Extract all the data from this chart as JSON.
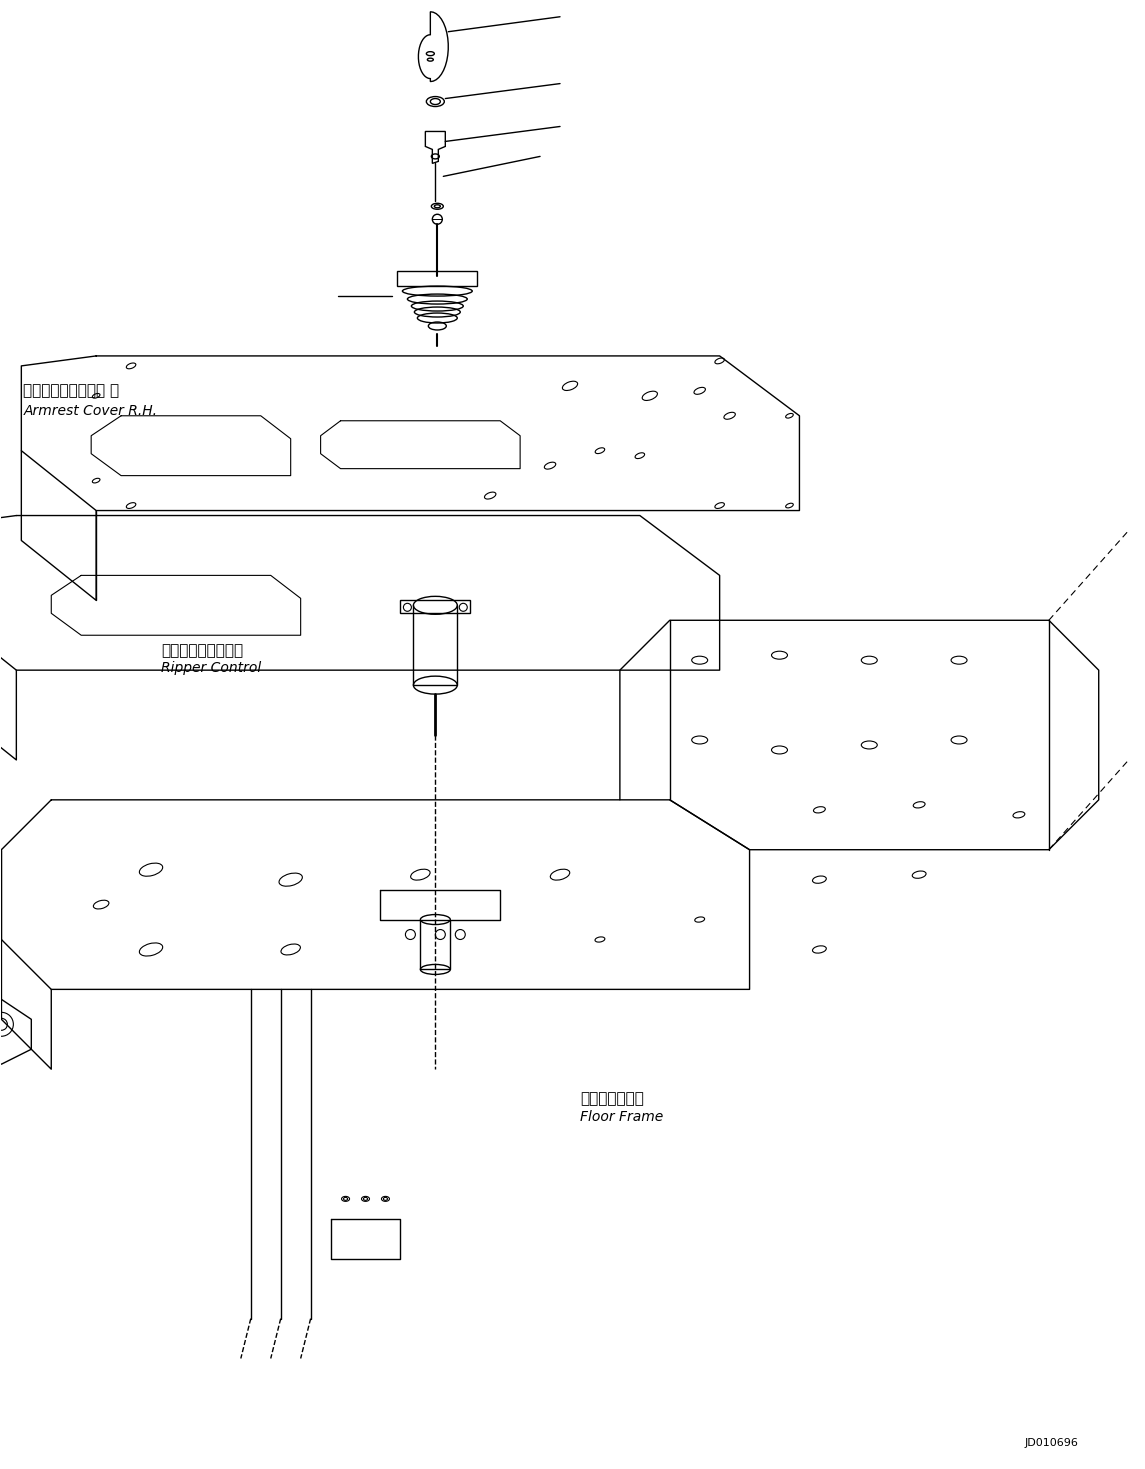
{
  "bg_color": "#ffffff",
  "line_color": "#000000",
  "fig_width": 11.45,
  "fig_height": 14.69,
  "dpi": 100,
  "label_armrest_jp": "アームレストカバー 右",
  "label_armrest_en": "Armrest Cover R.H.",
  "label_ripper_jp": "リッパコントロール",
  "label_ripper_en": "Ripper Control",
  "label_floor_jp": "フロアフレーム",
  "label_floor_en": "Floor Frame",
  "diagram_id": "JD010696"
}
